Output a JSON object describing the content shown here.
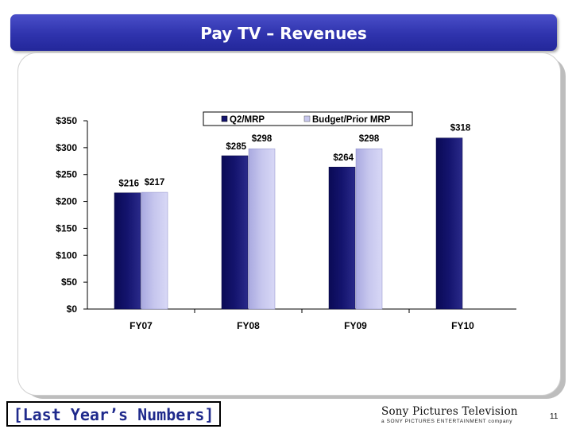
{
  "slide": {
    "title": "Pay TV – Revenues",
    "footer_note": "[Last Year’s Numbers]",
    "brand": "Sony Pictures Television",
    "brand_sub": "a SONY PICTURES ENTERTAINMENT company",
    "page_number": "11"
  },
  "colors": {
    "title_bar": "#2f33ad",
    "series_primary": "#14146e",
    "series_secondary": "#c7c7ee",
    "footer_text": "#1f2a8c"
  },
  "chart_data": {
    "type": "bar",
    "title": "",
    "xlabel": "",
    "ylabel": "",
    "categories": [
      "FY07",
      "FY08",
      "FY09",
      "FY10"
    ],
    "series": [
      {
        "name": "Q2/MRP",
        "values": [
          216,
          285,
          264,
          318
        ],
        "labels": [
          "$216",
          "$285",
          "$264",
          "$318"
        ]
      },
      {
        "name": "Budget/Prior MRP",
        "values": [
          217,
          298,
          298,
          null
        ],
        "labels": [
          "$217",
          "$298",
          "$298",
          null
        ]
      }
    ],
    "ylim": [
      0,
      350
    ],
    "yticks": [
      0,
      50,
      100,
      150,
      200,
      250,
      300,
      350
    ],
    "ytick_labels": [
      "$0",
      "$50",
      "$100",
      "$150",
      "$200",
      "$250",
      "$300",
      "$350"
    ],
    "grid": false,
    "legend_position": "top-right"
  }
}
